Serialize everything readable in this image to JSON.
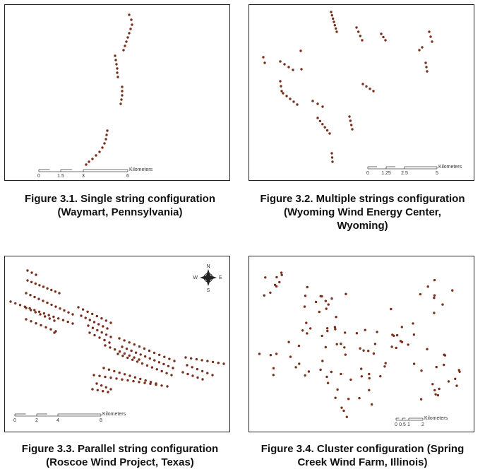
{
  "figures": [
    {
      "id": "fig1",
      "caption_line1": "Figure 3.1. Single string configuration",
      "caption_line2": "(Waymart, Pennsylvania)",
      "caption_line3": "",
      "scale_ticks": [
        "0",
        "1.5",
        "3",
        "6"
      ],
      "scale_unit": "Kilometers"
    },
    {
      "id": "fig2",
      "caption_line1": "Figure 3.2. Multiple strings configuration",
      "caption_line2": "(Wyoming Wind Energy Center,",
      "caption_line3": "Wyoming)",
      "scale_ticks": [
        "0",
        "1.25",
        "2.5",
        "5"
      ],
      "scale_unit": "Kilometers"
    },
    {
      "id": "fig3",
      "caption_line1": "Figure 3.3. Parallel string configuration",
      "caption_line2": "(Roscoe Wind Project, Texas)",
      "caption_line3": "",
      "scale_ticks": [
        "0",
        "2",
        "4",
        "8"
      ],
      "scale_unit": "Kilometers",
      "compass": {
        "n": "N",
        "s": "S",
        "e": "E",
        "w": "W"
      }
    },
    {
      "id": "fig4",
      "caption_line1": "Figure 3.4. Cluster configuration (Spring",
      "caption_line2": "Creek Wind Farm, Illinois)",
      "caption_line3": "",
      "scale_ticks": [
        "0",
        "0.5",
        "1",
        "2"
      ],
      "scale_unit": "Kilometers"
    }
  ],
  "colors": {
    "turbine_dot": "#7a2e1c",
    "frame": "#222222"
  }
}
